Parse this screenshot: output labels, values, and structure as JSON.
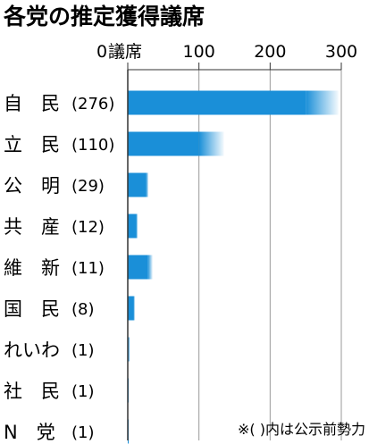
{
  "chart_data": {
    "type": "bar",
    "orientation": "horizontal",
    "title": "各党の推定獲得議席",
    "axis_unit_label": "議席",
    "xlim": [
      0,
      300
    ],
    "ticks": [
      0,
      100,
      200,
      300
    ],
    "categories": [
      "自　民",
      "立　民",
      "公　明",
      "共　産",
      "維　新",
      "国　民",
      "れいわ",
      "社　民",
      "N　党"
    ],
    "previous_seats_labels": [
      "(276)",
      "(110)",
      "(29)",
      "(12)",
      "(11)",
      "(8)",
      "(1)",
      "(1)",
      "(1)"
    ],
    "values": [
      296,
      135,
      29,
      14,
      35,
      9,
      3,
      1,
      0
    ],
    "range_high": [
      296,
      135,
      29,
      14,
      35,
      9,
      3,
      1,
      0
    ],
    "range_low": [
      250,
      100,
      26,
      12,
      28,
      8,
      1,
      0,
      0
    ],
    "note": "※(  )内は公示前勢力",
    "bar_color": "#1a8fd8",
    "grid": true
  }
}
